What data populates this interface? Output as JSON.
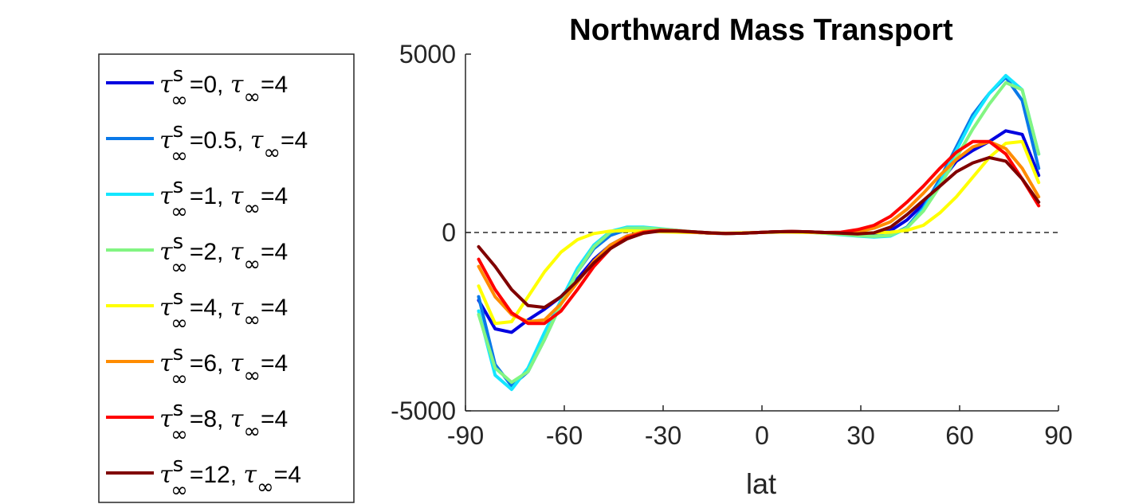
{
  "chart_data": {
    "type": "line",
    "title": "Northward Mass Transport",
    "xlabel": "lat",
    "ylabel": "",
    "xlim": [
      -90,
      90
    ],
    "ylim": [
      -5000,
      5000
    ],
    "xticks": [
      -90,
      -60,
      -30,
      0,
      30,
      60,
      90
    ],
    "yticks": [
      -5000,
      0,
      5000
    ],
    "x_tick_labels": [
      "-90",
      "-60",
      "-30",
      "0",
      "30",
      "60",
      "90"
    ],
    "y_tick_labels": [
      "-5000",
      "0",
      "5000"
    ],
    "zero_line": true,
    "grid": false,
    "legend_position": "left",
    "x": [
      -86,
      -81,
      -76,
      -71,
      -66,
      -61,
      -56,
      -51,
      -46,
      -41,
      -36,
      -31,
      -26,
      -21,
      -16,
      -11,
      -6,
      -1,
      4,
      9,
      14,
      19,
      24,
      29,
      34,
      39,
      44,
      49,
      54,
      59,
      64,
      69,
      74,
      79,
      84
    ],
    "series": [
      {
        "name": "τ∞s=0, τ∞=4",
        "sym": "τ",
        "sup": "s",
        "sub": "∞",
        "v1": "=0, ",
        "v2": "=4",
        "color": "#0000e0",
        "values": [
          -1900,
          -2700,
          -2800,
          -2450,
          -2150,
          -1800,
          -1300,
          -750,
          -350,
          -100,
          30,
          60,
          40,
          10,
          -20,
          -30,
          -20,
          0,
          20,
          30,
          20,
          0,
          -20,
          -40,
          -20,
          50,
          350,
          800,
          1400,
          2000,
          2300,
          2550,
          2850,
          2750,
          1600
        ]
      },
      {
        "name": "τ∞s=0.5, τ∞=4",
        "sym": "τ",
        "sup": "s",
        "sub": "∞",
        "v1": "=0.5, ",
        "v2": "=4",
        "color": "#0a78e8",
        "values": [
          -1800,
          -3700,
          -4300,
          -3900,
          -3000,
          -2000,
          -1100,
          -450,
          -80,
          80,
          120,
          90,
          50,
          10,
          -20,
          -30,
          -20,
          0,
          20,
          20,
          10,
          -10,
          -40,
          -70,
          -100,
          -80,
          150,
          700,
          1500,
          2400,
          3300,
          3900,
          4350,
          3700,
          1800
        ]
      },
      {
        "name": "τ∞s=1, τ∞=4",
        "sym": "τ",
        "sup": "s",
        "sub": "∞",
        "v1": "=1, ",
        "v2": "=4",
        "color": "#14e6ff",
        "values": [
          -2200,
          -4000,
          -4400,
          -3800,
          -2800,
          -1900,
          -1000,
          -350,
          30,
          150,
          150,
          110,
          60,
          20,
          -10,
          -30,
          -20,
          0,
          10,
          20,
          10,
          -20,
          -60,
          -100,
          -130,
          -100,
          120,
          650,
          1400,
          2300,
          3200,
          3900,
          4400,
          4000,
          2200
        ]
      },
      {
        "name": "τ∞s=2, τ∞=4",
        "sym": "τ",
        "sup": "s",
        "sub": "∞",
        "v1": "=2, ",
        "v2": "=4",
        "color": "#82f582",
        "values": [
          -2300,
          -3800,
          -4200,
          -3900,
          -3000,
          -2000,
          -1100,
          -400,
          10,
          120,
          130,
          100,
          60,
          20,
          -10,
          -30,
          -20,
          0,
          10,
          20,
          10,
          -20,
          -50,
          -90,
          -110,
          -80,
          130,
          600,
          1300,
          2100,
          2900,
          3600,
          4200,
          4000,
          2200
        ]
      },
      {
        "name": "τ∞s=4, τ∞=4",
        "sym": "τ",
        "sup": "s",
        "sub": "∞",
        "v1": "=4, ",
        "v2": "=4",
        "color": "#ffff00",
        "values": [
          -1500,
          -2550,
          -2500,
          -1800,
          -1100,
          -550,
          -200,
          -30,
          40,
          50,
          40,
          20,
          10,
          0,
          -10,
          -20,
          -10,
          0,
          10,
          10,
          0,
          -10,
          -20,
          -20,
          -10,
          10,
          60,
          200,
          550,
          1000,
          1550,
          2100,
          2500,
          2550,
          1400
        ]
      },
      {
        "name": "τ∞s=6, τ∞=4",
        "sym": "τ",
        "sup": "s",
        "sub": "∞",
        "v1": "=6, ",
        "v2": "=4",
        "color": "#ff8c00",
        "values": [
          -950,
          -1800,
          -2300,
          -2500,
          -2450,
          -2000,
          -1400,
          -800,
          -350,
          -100,
          20,
          60,
          40,
          10,
          -20,
          -30,
          -20,
          0,
          20,
          30,
          20,
          0,
          -10,
          20,
          120,
          300,
          650,
          1100,
          1600,
          2050,
          2400,
          2550,
          2350,
          1800,
          1000
        ]
      },
      {
        "name": "τ∞s=8, τ∞=4",
        "sym": "τ",
        "sup": "s",
        "sub": "∞",
        "v1": "=8, ",
        "v2": "=4",
        "color": "#ff0000",
        "values": [
          -750,
          -1600,
          -2250,
          -2550,
          -2550,
          -2200,
          -1600,
          -950,
          -450,
          -150,
          0,
          60,
          50,
          20,
          -10,
          -30,
          -20,
          0,
          20,
          30,
          20,
          0,
          10,
          80,
          200,
          450,
          850,
          1300,
          1800,
          2250,
          2550,
          2550,
          2200,
          1500,
          750
        ]
      },
      {
        "name": "τ∞s=12, τ∞=4",
        "sym": "τ",
        "sup": "s",
        "sub": "∞",
        "v1": "=12, ",
        "v2": "=4",
        "color": "#800000",
        "values": [
          -400,
          -950,
          -1600,
          -2050,
          -2100,
          -1800,
          -1350,
          -850,
          -450,
          -180,
          -20,
          40,
          40,
          20,
          -10,
          -30,
          -20,
          0,
          20,
          30,
          20,
          0,
          -20,
          -40,
          -10,
          150,
          500,
          900,
          1300,
          1700,
          1950,
          2100,
          2000,
          1500,
          850
        ]
      }
    ]
  }
}
